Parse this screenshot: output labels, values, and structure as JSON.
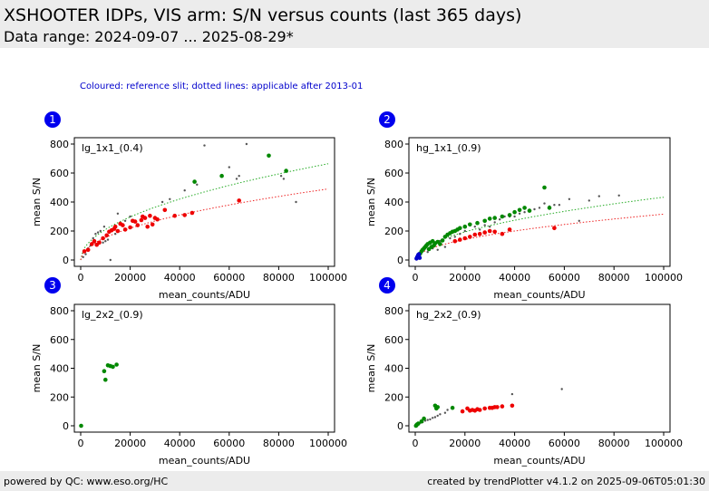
{
  "header": {
    "title": "XSHOOTER IDPs, VIS arm: S/N versus counts (last 365 days)",
    "subtitle": "Data range: 2024-09-07 ... 2025-08-29*"
  },
  "note": "Coloured: reference slit; dotted lines: applicable after 2013-01",
  "footer": {
    "left": "powered by QC: www.eso.org/HC",
    "right": "created by trendPlotter v4.1.2 on 2025-09-06T05:01:30"
  },
  "colors": {
    "reference_red": "#ee0000",
    "reference_green": "#008800",
    "reference_blue": "#0000cc",
    "other_points": "#555555",
    "fit_green": "#22aa22",
    "fit_red": "#ee2222",
    "badge": "#0000ee"
  },
  "chart_data": [
    {
      "id": "1",
      "type": "scatter",
      "label": "lg_1x1_(0.4)",
      "xlabel": "mean_counts/ADU",
      "ylabel": "mean S/N",
      "xlim": [
        0,
        100000
      ],
      "ylim": [
        0,
        800
      ],
      "xticks": [
        "0",
        "20000",
        "40000",
        "60000",
        "80000",
        "100000"
      ],
      "yticks": [
        "0",
        "200",
        "400",
        "600",
        "800"
      ],
      "series": [
        {
          "color": "red",
          "points": [
            [
              1500,
              60
            ],
            [
              3000,
              70
            ],
            [
              4500,
              110
            ],
            [
              5500,
              130
            ],
            [
              6500,
              105
            ],
            [
              7500,
              120
            ],
            [
              9000,
              150
            ],
            [
              10500,
              170
            ],
            [
              11500,
              195
            ],
            [
              12500,
              205
            ],
            [
              13500,
              215
            ],
            [
              14000,
              230
            ],
            [
              15000,
              200
            ],
            [
              16000,
              250
            ],
            [
              17000,
              240
            ],
            [
              18000,
              210
            ],
            [
              20000,
              225
            ],
            [
              21000,
              270
            ],
            [
              22000,
              265
            ],
            [
              23000,
              240
            ],
            [
              24500,
              275
            ],
            [
              25000,
              300
            ],
            [
              26000,
              290
            ],
            [
              27000,
              230
            ],
            [
              28000,
              305
            ],
            [
              29000,
              245
            ],
            [
              30000,
              290
            ],
            [
              31000,
              280
            ],
            [
              34000,
              345
            ],
            [
              38000,
              305
            ],
            [
              42000,
              310
            ],
            [
              45000,
              325
            ],
            [
              64000,
              410
            ]
          ]
        },
        {
          "color": "green",
          "points": [
            [
              46000,
              540
            ],
            [
              57000,
              580
            ],
            [
              76000,
              720
            ],
            [
              83000,
              615
            ]
          ]
        },
        {
          "color": "other",
          "points": [
            [
              1000,
              20
            ],
            [
              2000,
              40
            ],
            [
              3000,
              80
            ],
            [
              4000,
              100
            ],
            [
              5000,
              150
            ],
            [
              6000,
              180
            ],
            [
              7000,
              190
            ],
            [
              8000,
              200
            ],
            [
              9000,
              120
            ],
            [
              9500,
              230
            ],
            [
              10000,
              130
            ],
            [
              11000,
              140
            ],
            [
              12000,
              0
            ],
            [
              14000,
              180
            ],
            [
              15000,
              320
            ],
            [
              18000,
              270
            ],
            [
              20000,
              300
            ],
            [
              33000,
              400
            ],
            [
              36000,
              420
            ],
            [
              42000,
              480
            ],
            [
              47000,
              520
            ],
            [
              50000,
              790
            ],
            [
              60000,
              640
            ],
            [
              63000,
              560
            ],
            [
              64000,
              580
            ],
            [
              67000,
              800
            ],
            [
              81000,
              580
            ],
            [
              82000,
              560
            ],
            [
              87000,
              400
            ]
          ]
        }
      ],
      "fits": [
        {
          "color": "green",
          "a": 2.1,
          "p": 0.5
        },
        {
          "color": "red",
          "a": 1.55,
          "p": 0.5
        }
      ]
    },
    {
      "id": "2",
      "type": "scatter",
      "label": "hg_1x1_(0.9)",
      "xlabel": "mean_counts/ADU",
      "ylabel": "mean S/N",
      "xlim": [
        0,
        100000
      ],
      "ylim": [
        0,
        800
      ],
      "xticks": [
        "0",
        "20000",
        "40000",
        "60000",
        "80000",
        "100000"
      ],
      "yticks": [
        "0",
        "200",
        "400",
        "600",
        "800"
      ],
      "series": [
        {
          "color": "green",
          "points": [
            [
              1500,
              30
            ],
            [
              2000,
              45
            ],
            [
              2500,
              60
            ],
            [
              3000,
              70
            ],
            [
              3500,
              80
            ],
            [
              4000,
              90
            ],
            [
              4500,
              100
            ],
            [
              5000,
              110
            ],
            [
              5500,
              75
            ],
            [
              6000,
              120
            ],
            [
              6500,
              90
            ],
            [
              7000,
              130
            ],
            [
              7500,
              100
            ],
            [
              8000,
              115
            ],
            [
              9000,
              125
            ],
            [
              10000,
              110
            ],
            [
              11000,
              135
            ],
            [
              12000,
              160
            ],
            [
              13000,
              175
            ],
            [
              14000,
              185
            ],
            [
              15000,
              195
            ],
            [
              16000,
              200
            ],
            [
              17000,
              210
            ],
            [
              18000,
              220
            ],
            [
              20000,
              230
            ],
            [
              22000,
              245
            ],
            [
              25000,
              255
            ],
            [
              28000,
              270
            ],
            [
              30000,
              285
            ],
            [
              32000,
              290
            ],
            [
              35000,
              300
            ],
            [
              38000,
              310
            ],
            [
              40000,
              330
            ],
            [
              42000,
              345
            ],
            [
              44000,
              360
            ],
            [
              46000,
              340
            ],
            [
              52000,
              500
            ],
            [
              54000,
              360
            ]
          ]
        },
        {
          "color": "red",
          "points": [
            [
              16000,
              130
            ],
            [
              18000,
              140
            ],
            [
              20000,
              150
            ],
            [
              22000,
              160
            ],
            [
              24000,
              175
            ],
            [
              26000,
              180
            ],
            [
              28000,
              190
            ],
            [
              30000,
              200
            ],
            [
              32000,
              195
            ],
            [
              35000,
              180
            ],
            [
              38000,
              210
            ],
            [
              56000,
              220
            ]
          ]
        },
        {
          "color": "blue",
          "points": [
            [
              500,
              10
            ],
            [
              800,
              20
            ],
            [
              1000,
              25
            ],
            [
              1200,
              35
            ],
            [
              1500,
              40
            ],
            [
              1800,
              15
            ]
          ]
        },
        {
          "color": "other",
          "points": [
            [
              1000,
              30
            ],
            [
              3000,
              60
            ],
            [
              5000,
              55
            ],
            [
              7000,
              80
            ],
            [
              9000,
              70
            ],
            [
              10000,
              130
            ],
            [
              12000,
              90
            ],
            [
              14000,
              150
            ],
            [
              16000,
              160
            ],
            [
              18000,
              180
            ],
            [
              20000,
              200
            ],
            [
              22000,
              160
            ],
            [
              24000,
              230
            ],
            [
              26000,
              210
            ],
            [
              28000,
              240
            ],
            [
              30000,
              230
            ],
            [
              32000,
              260
            ],
            [
              34000,
              280
            ],
            [
              36000,
              300
            ],
            [
              38000,
              300
            ],
            [
              40000,
              300
            ],
            [
              42000,
              320
            ],
            [
              44000,
              330
            ],
            [
              46000,
              340
            ],
            [
              48000,
              350
            ],
            [
              50000,
              360
            ],
            [
              52000,
              390
            ],
            [
              54000,
              370
            ],
            [
              56000,
              380
            ],
            [
              58000,
              380
            ],
            [
              62000,
              420
            ],
            [
              66000,
              270
            ],
            [
              70000,
              410
            ],
            [
              74000,
              440
            ],
            [
              82000,
              445
            ]
          ]
        }
      ],
      "fits": [
        {
          "color": "green",
          "a": 1.37,
          "p": 0.5
        },
        {
          "color": "red",
          "a": 1.0,
          "p": 0.5
        }
      ]
    },
    {
      "id": "3",
      "type": "scatter",
      "label": "lg_2x2_(0.9)",
      "xlabel": "mean_counts/ADU",
      "ylabel": "mean S/N",
      "xlim": [
        0,
        100000
      ],
      "ylim": [
        0,
        800
      ],
      "xticks": [
        "0",
        "20000",
        "40000",
        "60000",
        "80000",
        "100000"
      ],
      "yticks": [
        "0",
        "200",
        "400",
        "600",
        "800"
      ],
      "series": [
        {
          "color": "green",
          "points": [
            [
              200,
              0
            ],
            [
              9500,
              380
            ],
            [
              10000,
              320
            ],
            [
              11000,
              420
            ],
            [
              12000,
              415
            ],
            [
              13000,
              410
            ],
            [
              14500,
              425
            ]
          ]
        }
      ],
      "fits": []
    },
    {
      "id": "4",
      "type": "scatter",
      "label": "hg_2x2_(0.9)",
      "xlabel": "mean_counts/ADU",
      "ylabel": "mean S/N",
      "xlim": [
        0,
        100000
      ],
      "ylim": [
        0,
        800
      ],
      "xticks": [
        "0",
        "20000",
        "40000",
        "60000",
        "80000",
        "100000"
      ],
      "yticks": [
        "0",
        "200",
        "400",
        "600",
        "800"
      ],
      "series": [
        {
          "color": "green",
          "points": [
            [
              300,
              0
            ],
            [
              500,
              5
            ],
            [
              800,
              10
            ],
            [
              1200,
              15
            ],
            [
              2500,
              30
            ],
            [
              3500,
              50
            ],
            [
              8000,
              140
            ],
            [
              8500,
              120
            ],
            [
              9000,
              130
            ],
            [
              15000,
              125
            ]
          ]
        },
        {
          "color": "red",
          "points": [
            [
              19000,
              100
            ],
            [
              21000,
              120
            ],
            [
              22000,
              105
            ],
            [
              23000,
              110
            ],
            [
              24000,
              105
            ],
            [
              25000,
              115
            ],
            [
              26000,
              110
            ],
            [
              28000,
              120
            ],
            [
              30000,
              125
            ],
            [
              31000,
              125
            ],
            [
              32000,
              130
            ],
            [
              33000,
              130
            ],
            [
              35000,
              135
            ],
            [
              39000,
              140
            ]
          ]
        },
        {
          "color": "other",
          "points": [
            [
              2000,
              20
            ],
            [
              3000,
              25
            ],
            [
              4000,
              35
            ],
            [
              5000,
              40
            ],
            [
              6000,
              45
            ],
            [
              7000,
              55
            ],
            [
              8000,
              60
            ],
            [
              9000,
              70
            ],
            [
              10000,
              80
            ],
            [
              12000,
              90
            ],
            [
              13000,
              110
            ],
            [
              15000,
              120
            ],
            [
              39000,
              220
            ],
            [
              59000,
              255
            ]
          ]
        }
      ],
      "fits": []
    }
  ]
}
